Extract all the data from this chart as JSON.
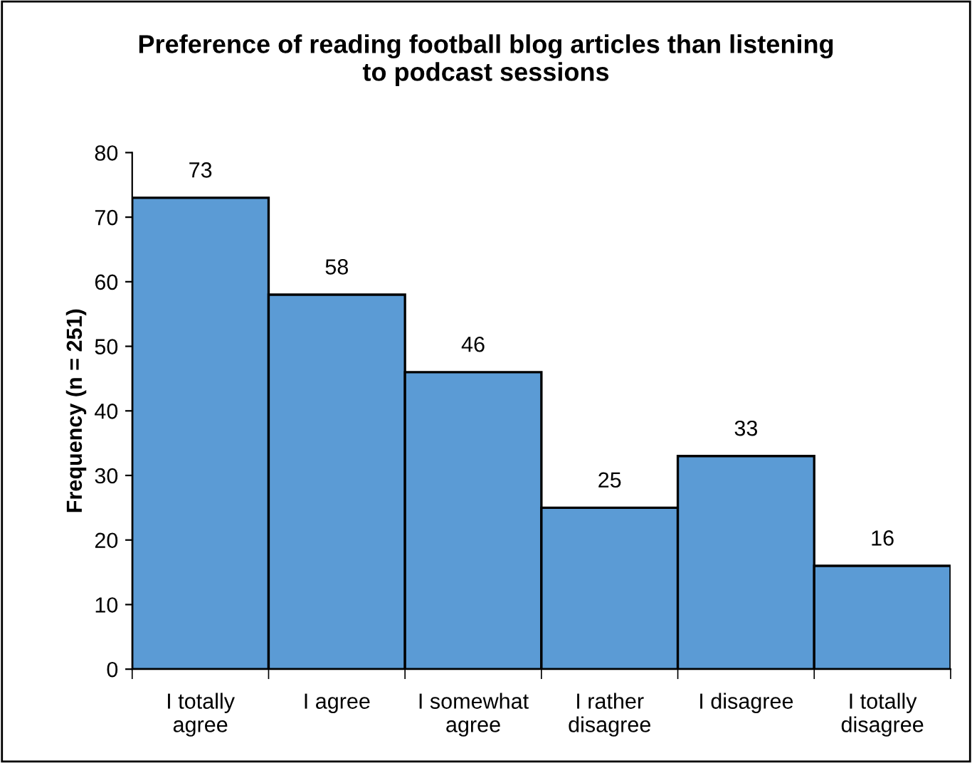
{
  "chart_data": {
    "type": "bar",
    "title": "Preference of reading football blog articles than listening\nto podcast sessions",
    "ylabel": "Frequency (n = 251)",
    "categories": [
      "I totally\nagree",
      "I agree",
      "I somewhat\nagree",
      "I rather\ndisagree",
      "I disagree",
      "I totally\ndisagree"
    ],
    "values": [
      73,
      58,
      46,
      25,
      33,
      16
    ],
    "color": "#5b9bd5",
    "data_labels": true,
    "ylim": [
      0,
      80
    ],
    "yticks": [
      0,
      10,
      20,
      30,
      40,
      50,
      60,
      70,
      80
    ],
    "grid": false,
    "legend": false
  }
}
